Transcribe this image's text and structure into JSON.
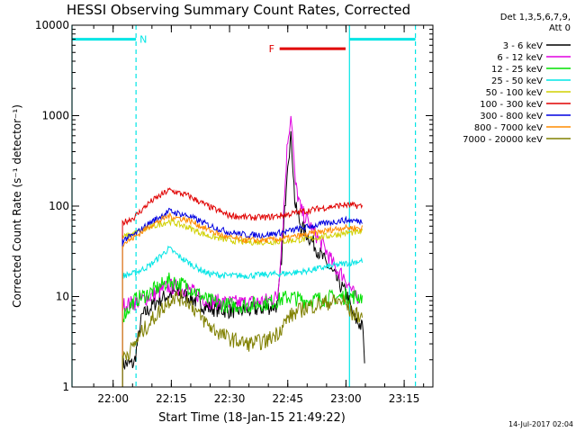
{
  "chart_data": {
    "type": "line",
    "title": "HESSI Observing Summary Count Rates, Corrected",
    "xlabel": "Start Time (18-Jan-15 21:49:22)",
    "ylabel": "Corrected Count Rate (s⁻¹ detector⁻¹)",
    "y_scale": "log",
    "ylim": [
      1,
      10000
    ],
    "xlim_minutes_after_start": [
      0,
      93
    ],
    "x_tick_labels": [
      {
        "label": "22:00",
        "minute": 10.6
      },
      {
        "label": "22:15",
        "minute": 25.6
      },
      {
        "label": "22:30",
        "minute": 40.6
      },
      {
        "label": "22:45",
        "minute": 55.6
      },
      {
        "label": "23:00",
        "minute": 70.6
      },
      {
        "label": "23:15",
        "minute": 85.6
      }
    ],
    "y_tick_labels": [
      {
        "label": "1",
        "value": 1
      },
      {
        "label": "10",
        "value": 10
      },
      {
        "label": "100",
        "value": 100
      },
      {
        "label": "1000",
        "value": 1000
      },
      {
        "label": "10000",
        "value": 10000
      }
    ],
    "legend_header": [
      "Det 1,3,5,6,7,9,",
      "Att 0"
    ],
    "legend_position": "right",
    "annotations": {
      "night": {
        "label": "N",
        "color": "#00e5e5",
        "segments": [
          [
            0,
            16.5
          ],
          [
            71.5,
            88.5
          ]
        ],
        "level": 7000
      },
      "flare": {
        "label": "F",
        "color": "#e00000",
        "segments": [
          [
            53.5,
            70.5
          ]
        ],
        "level": 5500
      }
    },
    "data_gaps": {
      "color": "#00e5e5",
      "solid_minutes": [
        0,
        71.5
      ],
      "dashed_minutes": [
        16.5,
        88.5
      ]
    },
    "timestamp": "14-Jul-2017 02:04",
    "series": [
      {
        "name": "3 - 6 keV",
        "color": "#000000",
        "points": [
          [
            13,
            1.8
          ],
          [
            16,
            1.8
          ],
          [
            18,
            6
          ],
          [
            22,
            9
          ],
          [
            26,
            11
          ],
          [
            30,
            10
          ],
          [
            35,
            7.5
          ],
          [
            40,
            7
          ],
          [
            45,
            7
          ],
          [
            50,
            7.5
          ],
          [
            53,
            8
          ],
          [
            54.5,
            50
          ],
          [
            55.5,
            300
          ],
          [
            56.5,
            600
          ],
          [
            57.5,
            100
          ],
          [
            59,
            60
          ],
          [
            62,
            40
          ],
          [
            65,
            25
          ],
          [
            68,
            16
          ],
          [
            71,
            10
          ],
          [
            72.5,
            6
          ],
          [
            74,
            5
          ],
          [
            75,
            4.5
          ],
          [
            75.5,
            1.2
          ]
        ]
      },
      {
        "name": "6 - 12 keV",
        "color": "#e000e0",
        "points": [
          [
            13,
            8
          ],
          [
            16,
            8.5
          ],
          [
            20,
            10
          ],
          [
            25,
            13
          ],
          [
            30,
            12
          ],
          [
            35,
            9
          ],
          [
            40,
            8.5
          ],
          [
            45,
            8.5
          ],
          [
            50,
            9
          ],
          [
            53,
            10
          ],
          [
            54.5,
            80
          ],
          [
            55.5,
            500
          ],
          [
            56.5,
            1100
          ],
          [
            57.5,
            180
          ],
          [
            59,
            90
          ],
          [
            62,
            55
          ],
          [
            65,
            35
          ],
          [
            68,
            20
          ],
          [
            70,
            17
          ],
          [
            72,
            12
          ],
          [
            74,
            8
          ]
        ]
      },
      {
        "name": "12 - 25 keV",
        "color": "#00e000",
        "points": [
          [
            13,
            6
          ],
          [
            16,
            9
          ],
          [
            20,
            11
          ],
          [
            25,
            15
          ],
          [
            30,
            13
          ],
          [
            35,
            9
          ],
          [
            40,
            8
          ],
          [
            45,
            8
          ],
          [
            50,
            8.5
          ],
          [
            53,
            9
          ],
          [
            56,
            10
          ],
          [
            60,
            9
          ],
          [
            65,
            9.5
          ],
          [
            70,
            10
          ],
          [
            75,
            10
          ]
        ]
      },
      {
        "name": "25 - 50 keV",
        "color": "#00e5e5",
        "points": [
          [
            13,
            17
          ],
          [
            16,
            18
          ],
          [
            20,
            22
          ],
          [
            25,
            34
          ],
          [
            28,
            27
          ],
          [
            32,
            21
          ],
          [
            35,
            18
          ],
          [
            40,
            17
          ],
          [
            45,
            17
          ],
          [
            50,
            17.5
          ],
          [
            55,
            18
          ],
          [
            60,
            19
          ],
          [
            65,
            21
          ],
          [
            70,
            23
          ],
          [
            75,
            25
          ]
        ]
      },
      {
        "name": "50 - 100 keV",
        "color": "#d0d000",
        "points": [
          [
            13,
            45
          ],
          [
            16,
            50
          ],
          [
            20,
            58
          ],
          [
            25,
            68
          ],
          [
            30,
            58
          ],
          [
            35,
            47
          ],
          [
            40,
            42
          ],
          [
            45,
            40
          ],
          [
            50,
            40
          ],
          [
            55,
            41
          ],
          [
            60,
            43
          ],
          [
            65,
            46
          ],
          [
            70,
            50
          ],
          [
            75,
            52
          ]
        ]
      },
      {
        "name": "100 - 300 keV",
        "color": "#e00000",
        "points": [
          [
            13,
            65
          ],
          [
            16,
            75
          ],
          [
            20,
            110
          ],
          [
            25,
            150
          ],
          [
            30,
            130
          ],
          [
            35,
            100
          ],
          [
            40,
            80
          ],
          [
            45,
            75
          ],
          [
            50,
            75
          ],
          [
            55,
            80
          ],
          [
            60,
            88
          ],
          [
            65,
            96
          ],
          [
            70,
            103
          ],
          [
            75,
            100
          ]
        ]
      },
      {
        "name": "300 - 800 keV",
        "color": "#0000e0",
        "points": [
          [
            13,
            42
          ],
          [
            16,
            48
          ],
          [
            20,
            65
          ],
          [
            25,
            88
          ],
          [
            30,
            78
          ],
          [
            35,
            62
          ],
          [
            40,
            52
          ],
          [
            45,
            48
          ],
          [
            50,
            48
          ],
          [
            55,
            52
          ],
          [
            60,
            58
          ],
          [
            65,
            64
          ],
          [
            70,
            70
          ],
          [
            75,
            68
          ]
        ]
      },
      {
        "name": "800 - 7000 keV",
        "color": "#ff8c00",
        "points": [
          [
            13,
            38
          ],
          [
            16,
            45
          ],
          [
            20,
            60
          ],
          [
            25,
            78
          ],
          [
            30,
            70
          ],
          [
            35,
            55
          ],
          [
            40,
            45
          ],
          [
            45,
            42
          ],
          [
            50,
            42
          ],
          [
            55,
            44
          ],
          [
            60,
            48
          ],
          [
            65,
            53
          ],
          [
            70,
            58
          ],
          [
            75,
            57
          ]
        ]
      },
      {
        "name": "7000 - 20000 keV",
        "color": "#808000",
        "points": [
          [
            13,
            2.2
          ],
          [
            15,
            2.5
          ],
          [
            18,
            4
          ],
          [
            22,
            6.5
          ],
          [
            26,
            10
          ],
          [
            30,
            9
          ],
          [
            33,
            6
          ],
          [
            36,
            4.5
          ],
          [
            40,
            3.5
          ],
          [
            45,
            3
          ],
          [
            50,
            3.2
          ],
          [
            53,
            4
          ],
          [
            56,
            6
          ],
          [
            60,
            7.5
          ],
          [
            65,
            8.5
          ],
          [
            70,
            9
          ],
          [
            72,
            6.5
          ],
          [
            75,
            6
          ]
        ]
      }
    ]
  }
}
